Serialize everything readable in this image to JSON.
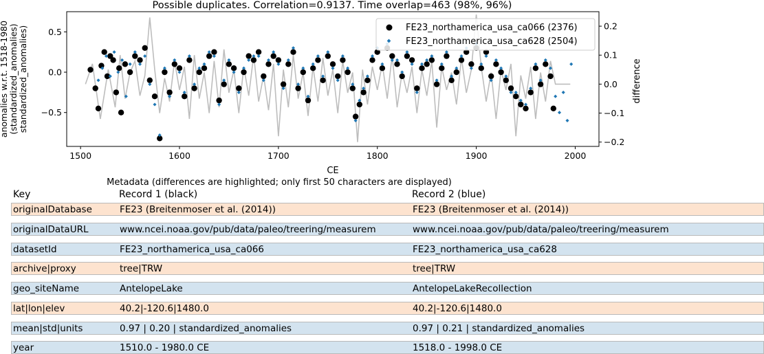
{
  "chart_data": {
    "type": "scatter",
    "title": "Possible duplicates. Correlation=0.9137. Time overlap=463 (98%, 96%)",
    "xlabel": "CE",
    "ylabel_lines": [
      "anomalies w.r.t. 1518-1980",
      "(standardized_anomalies)",
      "standardized_anomalies)"
    ],
    "y2label": "difference",
    "xlim": [
      1486,
      2024
    ],
    "ylim": [
      -0.92,
      0.75
    ],
    "y2lim": [
      -0.215,
      0.25
    ],
    "xticks": [
      1500,
      1600,
      1700,
      1800,
      1900,
      2000
    ],
    "yticks": [
      -0.5,
      0.0,
      0.5
    ],
    "ytick_labels": [
      "−0.5",
      "0.0",
      "0.5"
    ],
    "y2ticks": [
      -0.2,
      -0.1,
      0.0,
      0.1,
      0.2
    ],
    "y2tick_labels": [
      "−0.2",
      "−0.1",
      "0.0",
      "0.1",
      "0.2"
    ],
    "legend_position": "top-right",
    "grid": false,
    "series": [
      {
        "name": "FE23_northamerica_usa_ca066 (2376)",
        "color": "#000000",
        "marker": "circle",
        "x_range": [
          1510,
          1980
        ],
        "x": [
          1510,
          1515,
          1518,
          1521,
          1524,
          1527,
          1530,
          1533,
          1536,
          1539,
          1541,
          1545,
          1550,
          1555,
          1560,
          1565,
          1570,
          1575,
          1580,
          1585,
          1590,
          1595,
          1600,
          1605,
          1610,
          1615,
          1620,
          1625,
          1630,
          1635,
          1640,
          1645,
          1650,
          1655,
          1660,
          1665,
          1670,
          1675,
          1680,
          1685,
          1690,
          1695,
          1700,
          1705,
          1710,
          1715,
          1720,
          1725,
          1730,
          1735,
          1740,
          1745,
          1750,
          1755,
          1760,
          1765,
          1770,
          1775,
          1778,
          1782,
          1786,
          1790,
          1795,
          1800,
          1805,
          1810,
          1815,
          1820,
          1825,
          1830,
          1835,
          1840,
          1845,
          1850,
          1855,
          1860,
          1865,
          1870,
          1875,
          1880,
          1885,
          1890,
          1895,
          1900,
          1905,
          1910,
          1915,
          1920,
          1925,
          1930,
          1935,
          1940,
          1945,
          1950,
          1955,
          1960,
          1965,
          1970,
          1975,
          1978
        ],
        "y": [
          0.03,
          -0.2,
          -0.45,
          0.08,
          0.25,
          -0.05,
          0.2,
          0.15,
          -0.25,
          0.05,
          -0.5,
          0.1,
          0.0,
          0.2,
          0.15,
          0.3,
          -0.1,
          -0.3,
          -0.82,
          0.0,
          -0.25,
          0.1,
          0.05,
          -0.3,
          0.15,
          -0.2,
          0.0,
          0.05,
          0.2,
          0.25,
          -0.35,
          -0.15,
          0.1,
          0.05,
          -0.2,
          0.0,
          0.2,
          0.15,
          0.25,
          -0.05,
          0.1,
          0.2,
          0.15,
          -0.15,
          0.1,
          0.25,
          -0.2,
          0.0,
          -0.35,
          0.05,
          0.15,
          -0.1,
          0.2,
          0.1,
          -0.05,
          0.15,
          0.0,
          -0.2,
          -0.55,
          -0.4,
          -0.25,
          -0.1,
          0.15,
          0.25,
          0.05,
          0.3,
          0.2,
          0.1,
          -0.05,
          0.2,
          0.15,
          -0.2,
          0.05,
          0.1,
          0.15,
          -0.15,
          0.05,
          0.2,
          -0.1,
          0.0,
          0.15,
          0.25,
          0.1,
          0.3,
          0.05,
          0.25,
          -0.05,
          0.1,
          0.0,
          -0.1,
          -0.2,
          -0.3,
          -0.4,
          -0.45,
          -0.25,
          0.05,
          -0.15,
          0.1,
          -0.05,
          -0.45
        ]
      },
      {
        "name": "FE23_northamerica_usa_ca628 (2504)",
        "color": "#1f77b4",
        "marker": "diamond",
        "x_range": [
          1518,
          1998
        ],
        "x": [
          1518,
          1522,
          1526,
          1530,
          1534,
          1538,
          1542,
          1546,
          1550,
          1555,
          1560,
          1565,
          1570,
          1575,
          1580,
          1585,
          1590,
          1595,
          1600,
          1605,
          1610,
          1615,
          1620,
          1625,
          1630,
          1635,
          1640,
          1645,
          1650,
          1655,
          1660,
          1665,
          1670,
          1675,
          1680,
          1685,
          1690,
          1695,
          1700,
          1705,
          1710,
          1715,
          1720,
          1725,
          1730,
          1735,
          1740,
          1745,
          1750,
          1755,
          1760,
          1765,
          1770,
          1775,
          1778,
          1782,
          1786,
          1790,
          1795,
          1800,
          1805,
          1810,
          1815,
          1820,
          1825,
          1830,
          1835,
          1840,
          1845,
          1850,
          1855,
          1860,
          1865,
          1870,
          1875,
          1880,
          1885,
          1890,
          1895,
          1900,
          1905,
          1910,
          1915,
          1920,
          1925,
          1930,
          1935,
          1940,
          1945,
          1950,
          1955,
          1960,
          1965,
          1970,
          1975,
          1980,
          1984,
          1988,
          1992,
          1996
        ],
        "y": [
          -0.1,
          0.05,
          0.2,
          -0.05,
          0.25,
          0.0,
          0.15,
          -0.3,
          0.1,
          0.25,
          0.1,
          0.2,
          -0.15,
          -0.4,
          -0.78,
          0.05,
          -0.3,
          0.15,
          0.0,
          -0.25,
          0.2,
          -0.15,
          0.05,
          0.1,
          0.25,
          0.2,
          -0.4,
          -0.1,
          0.15,
          0.0,
          -0.25,
          0.05,
          0.15,
          0.2,
          0.2,
          -0.1,
          0.15,
          0.25,
          0.1,
          -0.2,
          0.15,
          0.3,
          -0.15,
          0.05,
          -0.3,
          0.1,
          0.2,
          -0.05,
          0.25,
          0.05,
          -0.1,
          0.2,
          0.05,
          -0.15,
          -0.6,
          -0.35,
          -0.2,
          -0.05,
          0.2,
          0.3,
          0.1,
          0.35,
          0.15,
          0.15,
          0.0,
          0.25,
          0.1,
          -0.25,
          0.1,
          0.15,
          0.2,
          -0.1,
          0.1,
          0.25,
          -0.05,
          0.05,
          0.2,
          0.3,
          0.05,
          0.35,
          0.1,
          0.2,
          -0.1,
          0.15,
          0.05,
          -0.05,
          -0.25,
          -0.25,
          -0.35,
          -0.4,
          -0.2,
          0.1,
          -0.1,
          0.15,
          0.05,
          -0.3,
          -0.5,
          -0.25,
          -0.6,
          0.1
        ]
      },
      {
        "name": "difference",
        "color": "#bdbdbd",
        "axis": "right",
        "x": [
          1505,
          1512,
          1520,
          1528,
          1535,
          1540,
          1545,
          1550,
          1555,
          1560,
          1565,
          1570,
          1575,
          1580,
          1585,
          1590,
          1595,
          1600,
          1605,
          1610,
          1615,
          1620,
          1625,
          1630,
          1635,
          1640,
          1645,
          1650,
          1655,
          1660,
          1665,
          1670,
          1675,
          1680,
          1685,
          1690,
          1695,
          1700,
          1705,
          1710,
          1715,
          1720,
          1725,
          1730,
          1735,
          1740,
          1745,
          1750,
          1755,
          1760,
          1765,
          1770,
          1775,
          1780,
          1785,
          1790,
          1795,
          1800,
          1805,
          1810,
          1815,
          1820,
          1825,
          1830,
          1835,
          1840,
          1845,
          1850,
          1855,
          1860,
          1865,
          1870,
          1875,
          1880,
          1885,
          1890,
          1895,
          1900,
          1905,
          1910,
          1915,
          1920,
          1925,
          1930,
          1935,
          1940,
          1945,
          1950,
          1955,
          1960,
          1965,
          1970,
          1975,
          1980,
          1985,
          1990,
          1995
        ],
        "y": [
          0.0,
          0.07,
          -0.12,
          0.05,
          -0.08,
          0.1,
          -0.05,
          0.04,
          0.08,
          -0.04,
          0.03,
          0.23,
          0.05,
          -0.1,
          0.02,
          -0.06,
          0.08,
          -0.02,
          0.06,
          -0.12,
          0.1,
          -0.05,
          0.04,
          -0.1,
          0.08,
          -0.08,
          0.12,
          -0.03,
          0.05,
          -0.1,
          0.06,
          -0.04,
          0.1,
          -0.06,
          0.03,
          -0.09,
          0.07,
          -0.18,
          0.05,
          -0.08,
          0.1,
          -0.05,
          0.04,
          -0.11,
          0.06,
          -0.06,
          0.09,
          -0.04,
          0.05,
          -0.1,
          0.08,
          -0.03,
          0.04,
          -0.2,
          0.05,
          -0.07,
          0.06,
          -0.02,
          0.07,
          -0.05,
          0.1,
          -0.08,
          0.04,
          -0.03,
          0.06,
          -0.1,
          0.05,
          -0.04,
          0.08,
          -0.15,
          0.06,
          -0.02,
          0.04,
          -0.07,
          0.09,
          -0.03,
          0.05,
          0.24,
          0.06,
          -0.06,
          0.04,
          -0.12,
          0.05,
          -0.02,
          0.07,
          -0.18,
          0.03,
          -0.05,
          0.06,
          -0.12,
          0.04,
          -0.06,
          0.08,
          0.0,
          0.0,
          0.0,
          0.0
        ]
      }
    ]
  },
  "metadata": {
    "caption": "Metadata (differences are highlighted; only first 50 characters are displayed)",
    "headers": {
      "key": "Key",
      "r1": "Record 1 (black)",
      "r2": "Record 2 (blue)"
    },
    "highlight_color": "#fde3cf",
    "same_color": "#d3e3ef",
    "rows": [
      {
        "key": "originalDatabase",
        "r1": "FE23 (Breitenmoser et al. (2014))",
        "r2": "FE23 (Breitenmoser et al. (2014))",
        "diff": true
      },
      {
        "key": "originalDataURL",
        "r1": "www.ncei.noaa.gov/pub/data/paleo/treering/measurem",
        "r2": "www.ncei.noaa.gov/pub/data/paleo/treering/measurem",
        "diff": false
      },
      {
        "key": "datasetId",
        "r1": "FE23_northamerica_usa_ca066",
        "r2": "FE23_northamerica_usa_ca628",
        "diff": false
      },
      {
        "key": "archive|proxy",
        "r1": "tree|TRW",
        "r2": "tree|TRW",
        "diff": true
      },
      {
        "key": "geo_siteName",
        "r1": "AntelopeLake",
        "r2": "AntelopeLakeRecollection",
        "diff": false
      },
      {
        "key": "lat|lon|elev",
        "r1": "40.2|-120.6|1480.0",
        "r2": "40.2|-120.6|1480.0",
        "diff": true
      },
      {
        "key": "mean|std|units",
        "r1": "0.97 | 0.20 | standardized_anomalies",
        "r2": "0.97 | 0.21 | standardized_anomalies",
        "diff": false
      },
      {
        "key": "year",
        "r1": "1510.0 - 1980.0 CE",
        "r2": "1518.0 - 1998.0 CE",
        "diff": false
      }
    ]
  }
}
